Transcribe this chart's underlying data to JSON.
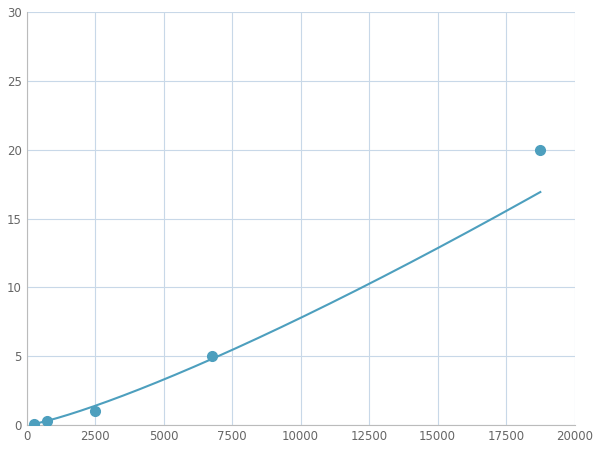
{
  "x_points": [
    250,
    750,
    2500,
    6750,
    18750
  ],
  "y_points": [
    0.1,
    0.3,
    1.0,
    5.0,
    20.0
  ],
  "line_color": "#4d9fbe",
  "marker_color": "#4d9fbe",
  "marker_size": 7,
  "linewidth": 1.5,
  "xlim": [
    0,
    20000
  ],
  "ylim": [
    0,
    30
  ],
  "xticks": [
    0,
    2500,
    5000,
    7500,
    10000,
    12500,
    15000,
    17500,
    20000
  ],
  "yticks": [
    0,
    5,
    10,
    15,
    20,
    25,
    30
  ],
  "grid_color": "#c8d8e8",
  "bg_color": "#ffffff",
  "figsize": [
    6.0,
    4.5
  ],
  "dpi": 100
}
